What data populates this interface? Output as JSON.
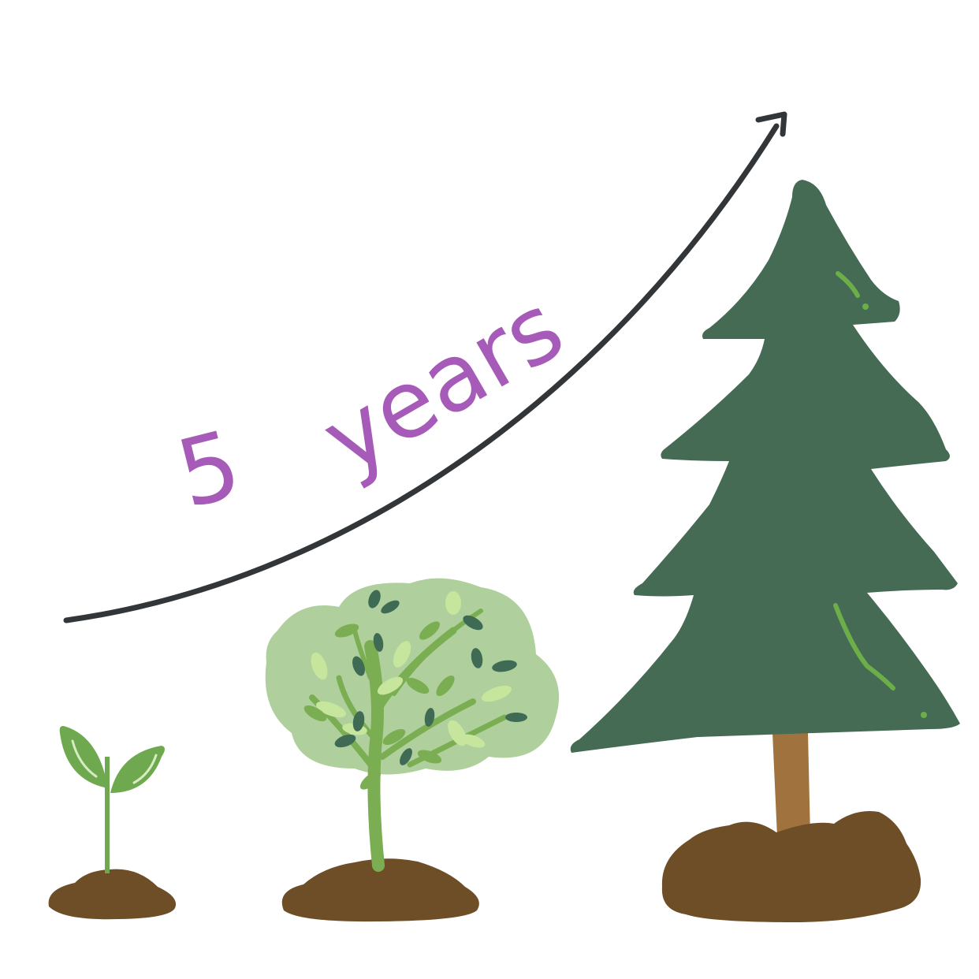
{
  "label": {
    "number": "5",
    "unit": "years",
    "color": "#a75bb8"
  },
  "colors": {
    "arrow": "#333638",
    "soil": "#6e4e26",
    "sprout_leaf": "#6fa94f",
    "sprout_highlight": "#d7ecc3",
    "bush_canopy": "#afd09d",
    "bush_stem": "#7bae52",
    "bush_leaf_light": "#c6e59d",
    "bush_leaf_dark": "#3f6a54",
    "pine": "#456b55",
    "pine_trunk": "#a0733e",
    "pine_highlight": "#6cae48"
  },
  "stages": [
    {
      "name": "sprout-icon"
    },
    {
      "name": "young-tree-icon"
    },
    {
      "name": "pine-tree-icon"
    }
  ]
}
